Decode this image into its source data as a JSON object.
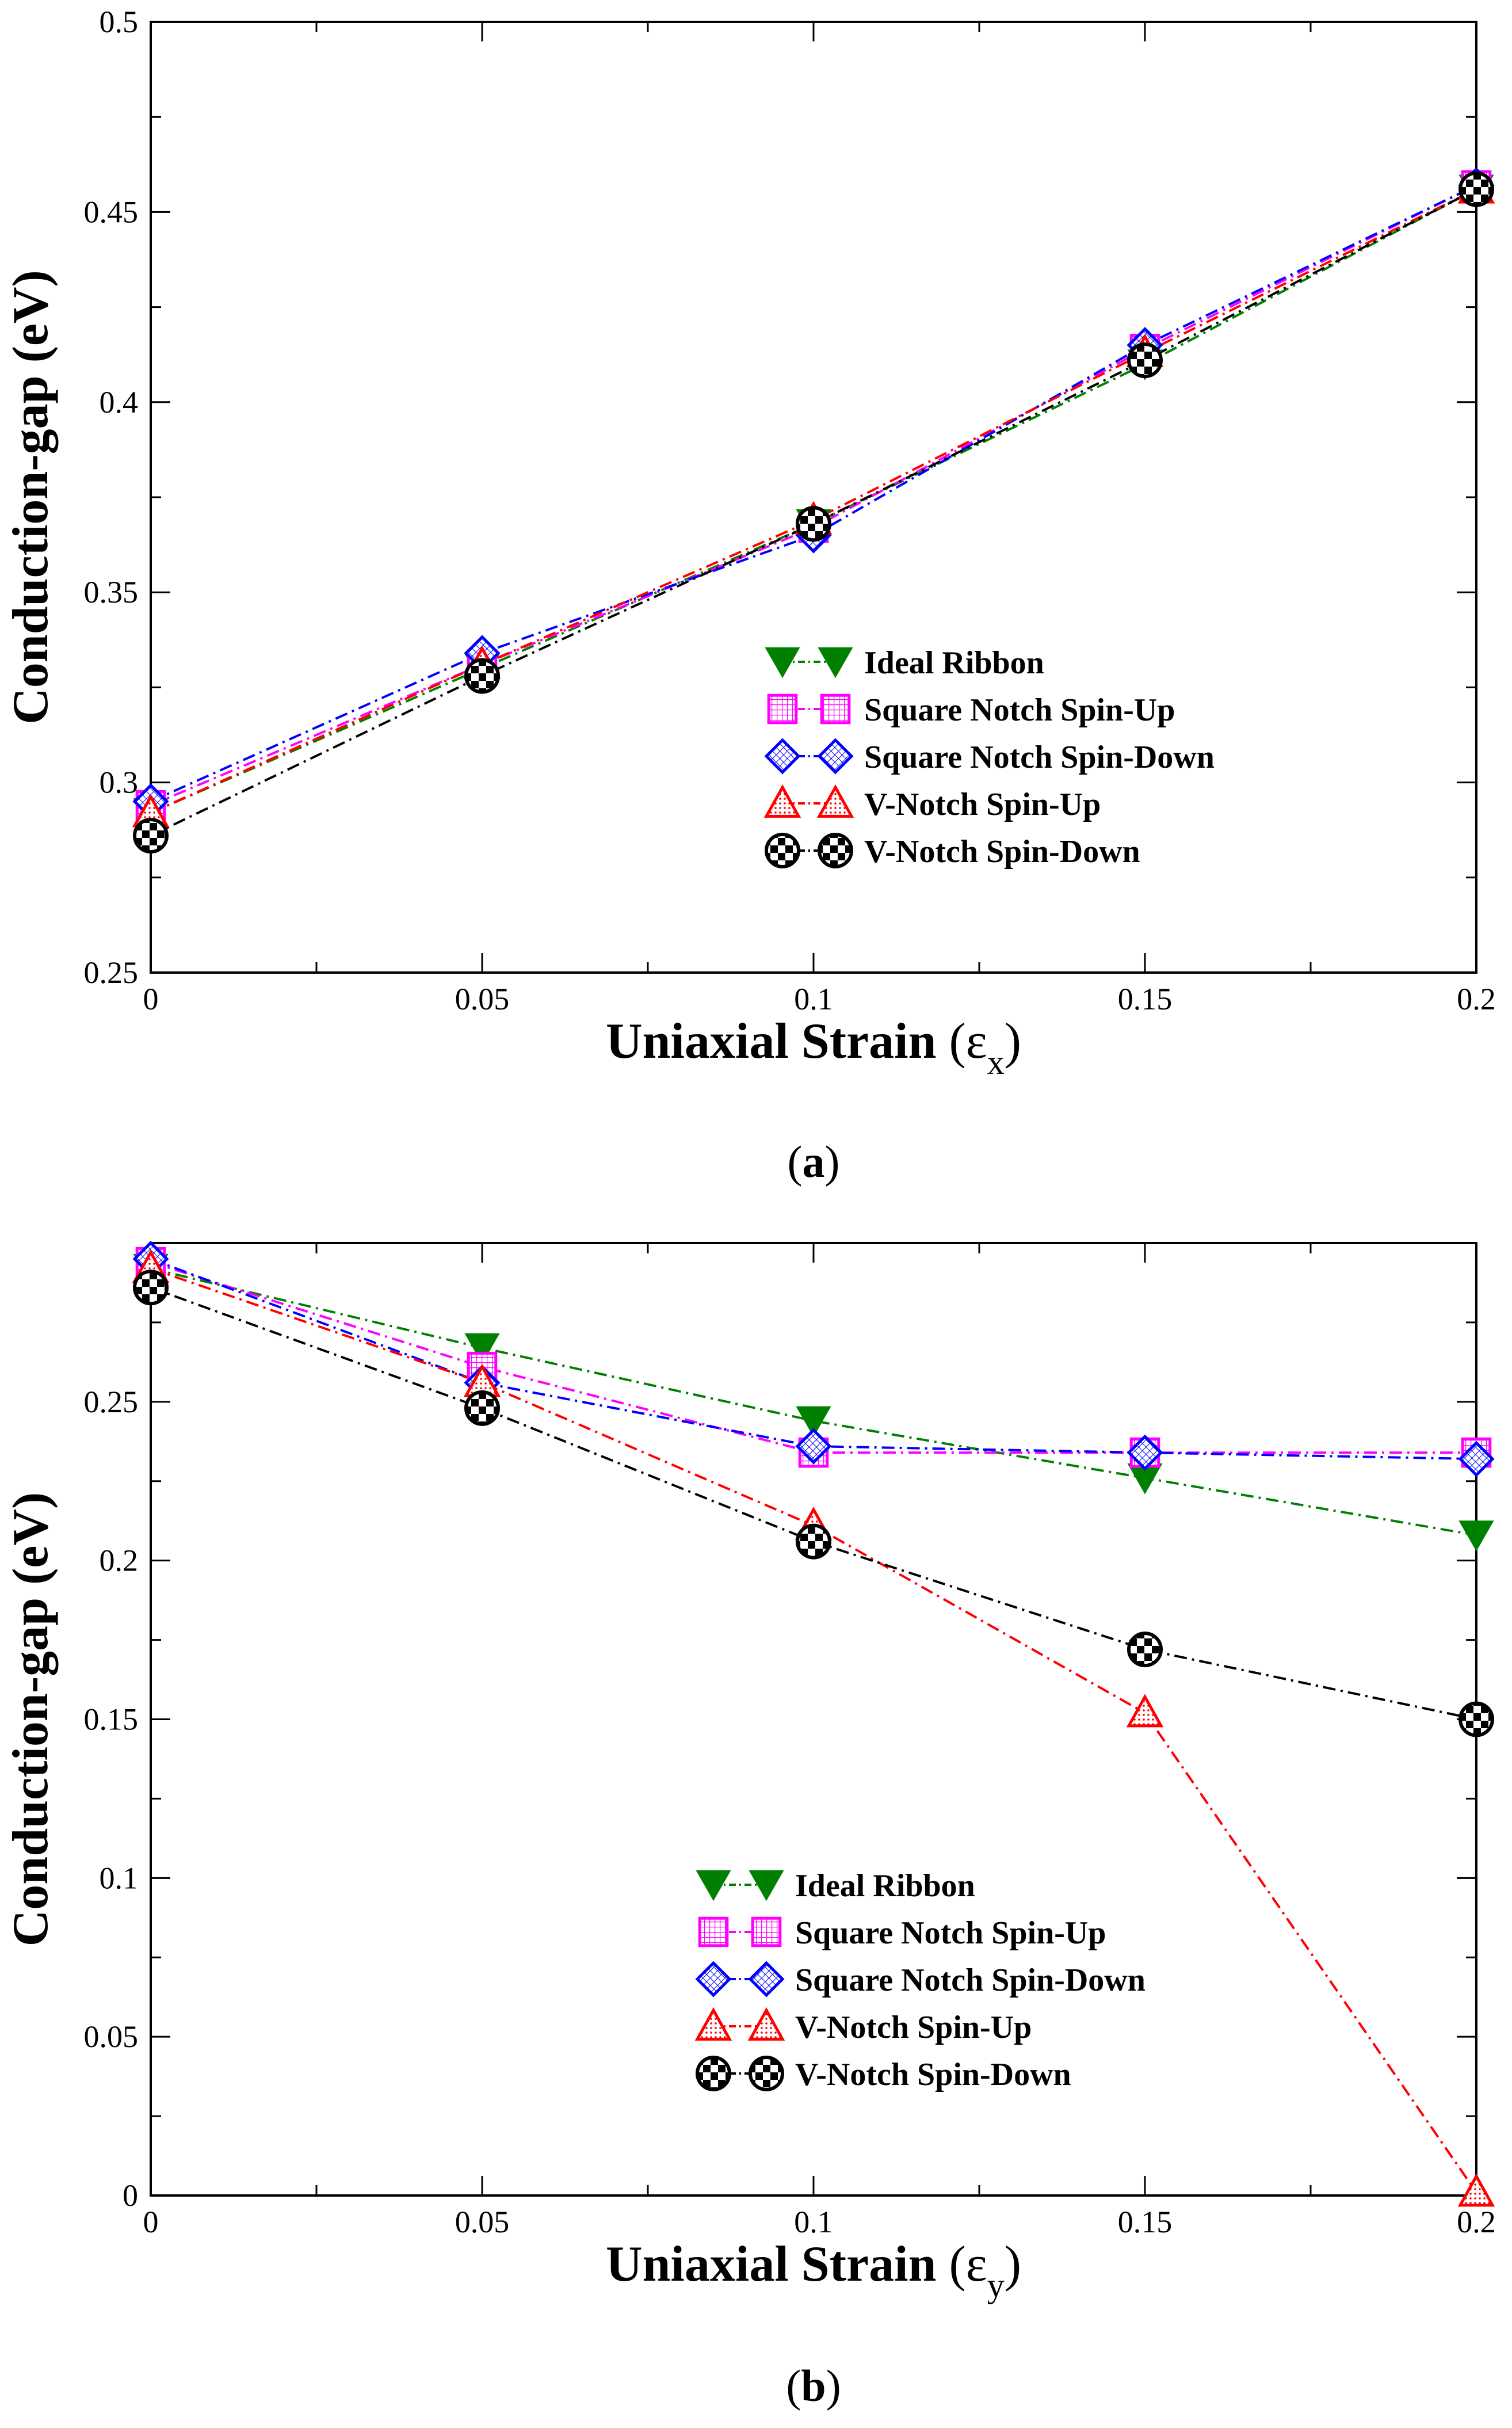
{
  "chart_data": [
    {
      "type": "line",
      "panel_label": "a",
      "xlabel": "Uniaxial Strain",
      "xlabel_symbol": "ε",
      "xlabel_subscript": "x",
      "ylabel": "Conduction-gap (eV)",
      "xlim": [
        0,
        0.2
      ],
      "ylim": [
        0.25,
        0.5
      ],
      "x_ticks": [
        0,
        0.05,
        0.1,
        0.15,
        0.2
      ],
      "x_tick_labels": [
        "0",
        "0.05",
        "0.1",
        "0.15",
        "0.2"
      ],
      "y_ticks": [
        0.25,
        0.3,
        0.35,
        0.4,
        0.45,
        0.5
      ],
      "y_tick_labels": [
        "0.25",
        "0.3",
        "0.35",
        "0.4",
        "0.45",
        "0.5"
      ],
      "legend_position": "center-right",
      "x": [
        0,
        0.05,
        0.1,
        0.15,
        0.2
      ],
      "series": [
        {
          "name": "Ideal Ribbon",
          "values": [
            0.292,
            0.33,
            0.368,
            0.41,
            0.456
          ],
          "color": "#008000",
          "marker": "triangle-down"
        },
        {
          "name": "Square Notch Spin-Up",
          "values": [
            0.294,
            0.331,
            0.367,
            0.414,
            0.457
          ],
          "color": "#ff00ff",
          "marker": "square"
        },
        {
          "name": "Square Notch Spin-Down",
          "values": [
            0.295,
            0.334,
            0.365,
            0.415,
            0.457
          ],
          "color": "#0000ff",
          "marker": "diamond"
        },
        {
          "name": "V-Notch Spin-Up",
          "values": [
            0.292,
            0.331,
            0.369,
            0.413,
            0.456
          ],
          "color": "#ff0000",
          "marker": "triangle-up"
        },
        {
          "name": "V-Notch Spin-Down",
          "values": [
            0.286,
            0.328,
            0.368,
            0.411,
            0.456
          ],
          "color": "#000000",
          "marker": "circle-checker"
        }
      ]
    },
    {
      "type": "line",
      "panel_label": "b",
      "xlabel": "Uniaxial Strain",
      "xlabel_symbol": "ε",
      "xlabel_subscript": "y",
      "ylabel": "Conduction-gap (eV)",
      "xlim": [
        0,
        0.2
      ],
      "ylim": [
        0,
        0.3
      ],
      "x_ticks": [
        0,
        0.05,
        0.1,
        0.15,
        0.2
      ],
      "x_tick_labels": [
        "0",
        "0.05",
        "0.1",
        "0.15",
        "0.2"
      ],
      "y_ticks": [
        0,
        0.05,
        0.1,
        0.15,
        0.2,
        0.25
      ],
      "y_tick_labels": [
        "0",
        "0.05",
        "0.1",
        "0.15",
        "0.2",
        "0.25"
      ],
      "legend_position": "bottom-center",
      "x": [
        0,
        0.05,
        0.1,
        0.15,
        0.2
      ],
      "series": [
        {
          "name": "Ideal Ribbon",
          "values": [
            0.292,
            0.267,
            0.244,
            0.226,
            0.208
          ],
          "color": "#008000",
          "marker": "triangle-down"
        },
        {
          "name": "Square Notch Spin-Up",
          "values": [
            0.294,
            0.261,
            0.234,
            0.234,
            0.234
          ],
          "color": "#ff00ff",
          "marker": "square"
        },
        {
          "name": "Square Notch Spin-Down",
          "values": [
            0.295,
            0.256,
            0.236,
            0.234,
            0.232
          ],
          "color": "#0000ff",
          "marker": "diamond"
        },
        {
          "name": "V-Notch Spin-Up",
          "values": [
            0.292,
            0.256,
            0.211,
            0.152,
            0.001
          ],
          "color": "#ff0000",
          "marker": "triangle-up"
        },
        {
          "name": "V-Notch Spin-Down",
          "values": [
            0.286,
            0.248,
            0.206,
            0.172,
            0.15
          ],
          "color": "#000000",
          "marker": "circle-checker"
        }
      ]
    }
  ]
}
